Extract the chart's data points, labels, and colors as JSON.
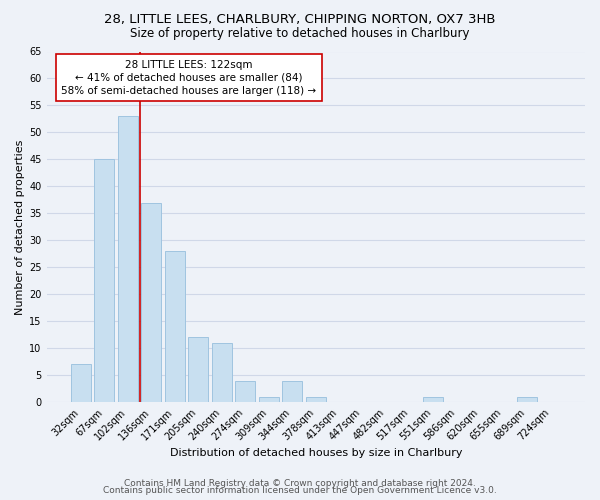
{
  "title1": "28, LITTLE LEES, CHARLBURY, CHIPPING NORTON, OX7 3HB",
  "title2": "Size of property relative to detached houses in Charlbury",
  "xlabel": "Distribution of detached houses by size in Charlbury",
  "ylabel": "Number of detached properties",
  "bin_labels": [
    "32sqm",
    "67sqm",
    "102sqm",
    "136sqm",
    "171sqm",
    "205sqm",
    "240sqm",
    "274sqm",
    "309sqm",
    "344sqm",
    "378sqm",
    "413sqm",
    "447sqm",
    "482sqm",
    "517sqm",
    "551sqm",
    "586sqm",
    "620sqm",
    "655sqm",
    "689sqm",
    "724sqm"
  ],
  "bar_values": [
    7,
    45,
    53,
    37,
    28,
    12,
    11,
    4,
    1,
    4,
    1,
    0,
    0,
    0,
    0,
    1,
    0,
    0,
    0,
    1,
    0
  ],
  "bar_color": "#c8dff0",
  "bar_edge_color": "#a0c4e0",
  "highlight_line_color": "#cc0000",
  "annotation_line1": "28 LITTLE LEES: 122sqm",
  "annotation_line2": "← 41% of detached houses are smaller (84)",
  "annotation_line3": "58% of semi-detached houses are larger (118) →",
  "annotation_box_color": "#ffffff",
  "annotation_box_edge": "#cc0000",
  "ylim": [
    0,
    65
  ],
  "yticks": [
    0,
    5,
    10,
    15,
    20,
    25,
    30,
    35,
    40,
    45,
    50,
    55,
    60,
    65
  ],
  "footer1": "Contains HM Land Registry data © Crown copyright and database right 2024.",
  "footer2": "Contains public sector information licensed under the Open Government Licence v3.0.",
  "bg_color": "#eef2f8",
  "plot_bg_color": "#eef2f8",
  "grid_color": "#d0d8e8",
  "title_fontsize": 9.5,
  "subtitle_fontsize": 8.5,
  "axis_label_fontsize": 8,
  "tick_fontsize": 7,
  "footer_fontsize": 6.5,
  "annotation_fontsize": 7.5
}
